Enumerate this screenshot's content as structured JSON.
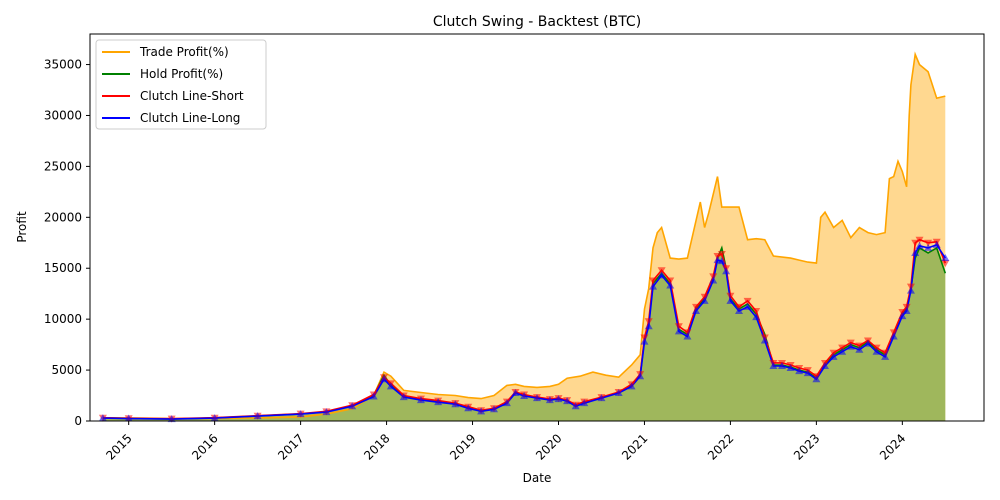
{
  "chart_data": {
    "type": "line",
    "title": "Clutch Swing - Backtest (BTC)",
    "xlabel": "Date",
    "ylabel": "Profit",
    "xlim": [
      2014.55,
      2024.95
    ],
    "ylim": [
      0,
      38000
    ],
    "x_ticks": [
      "2015",
      "2016",
      "2017",
      "2018",
      "2019",
      "2020",
      "2021",
      "2022",
      "2023",
      "2024"
    ],
    "y_ticks": [
      0,
      5000,
      10000,
      15000,
      20000,
      25000,
      30000,
      35000
    ],
    "legend_position": "top-left",
    "grid": false,
    "colors": {
      "trade": "#FFA500",
      "trade_fill": "#FFD68A",
      "hold": "#008000",
      "hold_fill": "#9AB55A",
      "short": "#FF0000",
      "long": "#0000FF"
    },
    "legend": [
      "Trade Profit(%)",
      "Hold Profit(%)",
      "Clutch Line-Short",
      "Clutch Line-Long"
    ],
    "series": [
      {
        "name": "Trade Profit(%)",
        "x": [
          2014.7,
          2015.0,
          2015.5,
          2016.0,
          2016.5,
          2017.0,
          2017.3,
          2017.6,
          2017.85,
          2017.97,
          2018.05,
          2018.2,
          2018.4,
          2018.6,
          2018.8,
          2018.95,
          2019.1,
          2019.25,
          2019.4,
          2019.5,
          2019.6,
          2019.75,
          2019.9,
          2020.0,
          2020.1,
          2020.25,
          2020.4,
          2020.55,
          2020.7,
          2020.85,
          2020.95,
          2021.0,
          2021.05,
          2021.1,
          2021.15,
          2021.2,
          2021.3,
          2021.4,
          2021.5,
          2021.65,
          2021.7,
          2021.75,
          2021.85,
          2021.9,
          2022.0,
          2022.1,
          2022.2,
          2022.3,
          2022.4,
          2022.5,
          2022.7,
          2022.8,
          2022.9,
          2023.0,
          2023.05,
          2023.1,
          2023.2,
          2023.3,
          2023.4,
          2023.5,
          2023.6,
          2023.7,
          2023.8,
          2023.85,
          2023.9,
          2023.95,
          2024.0,
          2024.05,
          2024.08,
          2024.1,
          2024.15,
          2024.2,
          2024.3,
          2024.4,
          2024.5
        ],
        "y": [
          300,
          300,
          250,
          250,
          300,
          400,
          700,
          1200,
          2500,
          4800,
          4400,
          3000,
          2800,
          2600,
          2500,
          2300,
          2200,
          2500,
          3500,
          3600,
          3400,
          3300,
          3400,
          3600,
          4200,
          4400,
          4800,
          4500,
          4300,
          5500,
          6500,
          11000,
          13000,
          17000,
          18500,
          19000,
          16000,
          15900,
          16000,
          21500,
          19000,
          20500,
          24000,
          21000,
          21000,
          21000,
          17800,
          17900,
          17800,
          16200,
          16000,
          15800,
          15600,
          15500,
          20000,
          20500,
          19000,
          19700,
          18000,
          19000,
          18500,
          18300,
          18500,
          23800,
          24000,
          25500,
          24500,
          23000,
          30000,
          33000,
          36000,
          35000,
          34300,
          31700,
          31900
        ]
      },
      {
        "name": "Hold Profit(%)",
        "x": [
          2014.7,
          2015.0,
          2015.5,
          2016.0,
          2016.5,
          2017.0,
          2017.3,
          2017.6,
          2017.85,
          2017.97,
          2018.05,
          2018.2,
          2018.4,
          2018.6,
          2018.8,
          2018.95,
          2019.1,
          2019.25,
          2019.4,
          2019.5,
          2019.6,
          2019.75,
          2019.9,
          2020.0,
          2020.1,
          2020.2,
          2020.3,
          2020.5,
          2020.7,
          2020.85,
          2020.95,
          2021.0,
          2021.05,
          2021.1,
          2021.2,
          2021.3,
          2021.4,
          2021.5,
          2021.6,
          2021.7,
          2021.8,
          2021.85,
          2021.9,
          2021.95,
          2022.0,
          2022.1,
          2022.2,
          2022.3,
          2022.4,
          2022.5,
          2022.6,
          2022.7,
          2022.8,
          2022.9,
          2023.0,
          2023.1,
          2023.2,
          2023.3,
          2023.4,
          2023.5,
          2023.6,
          2023.7,
          2023.8,
          2023.9,
          2024.0,
          2024.05,
          2024.1,
          2024.15,
          2024.2,
          2024.3,
          2024.4,
          2024.5
        ],
        "y": [
          300,
          250,
          200,
          300,
          500,
          700,
          900,
          1500,
          2500,
          4500,
          3500,
          2400,
          2100,
          1900,
          1700,
          1300,
          1000,
          1200,
          1800,
          2800,
          2500,
          2300,
          2100,
          2200,
          2000,
          1500,
          1800,
          2300,
          2800,
          3500,
          4500,
          8000,
          9500,
          13500,
          14500,
          13500,
          9000,
          8500,
          11000,
          12000,
          14000,
          16000,
          17000,
          15000,
          12000,
          11000,
          11500,
          10500,
          8500,
          5500,
          5500,
          5300,
          5000,
          4800,
          4200,
          5500,
          6500,
          7000,
          7500,
          7200,
          7800,
          7000,
          6500,
          8500,
          10500,
          11000,
          13000,
          16000,
          17000,
          16500,
          17000,
          14500
        ]
      },
      {
        "name": "Clutch Line-Short",
        "x": [
          2014.7,
          2015.0,
          2015.5,
          2016.0,
          2016.5,
          2017.0,
          2017.3,
          2017.6,
          2017.85,
          2017.97,
          2018.05,
          2018.2,
          2018.4,
          2018.6,
          2018.8,
          2018.95,
          2019.1,
          2019.25,
          2019.4,
          2019.5,
          2019.6,
          2019.75,
          2019.9,
          2020.0,
          2020.1,
          2020.2,
          2020.3,
          2020.5,
          2020.7,
          2020.85,
          2020.95,
          2021.0,
          2021.05,
          2021.1,
          2021.2,
          2021.3,
          2021.4,
          2021.5,
          2021.6,
          2021.7,
          2021.8,
          2021.85,
          2021.9,
          2021.95,
          2022.0,
          2022.1,
          2022.2,
          2022.3,
          2022.4,
          2022.5,
          2022.6,
          2022.7,
          2022.8,
          2022.9,
          2023.0,
          2023.1,
          2023.2,
          2023.3,
          2023.4,
          2023.5,
          2023.6,
          2023.7,
          2023.8,
          2023.9,
          2024.0,
          2024.05,
          2024.1,
          2024.15,
          2024.2,
          2024.3,
          2024.4,
          2024.5
        ],
        "y": [
          320,
          270,
          230,
          320,
          520,
          720,
          950,
          1550,
          2600,
          4300,
          3700,
          2500,
          2200,
          2000,
          1750,
          1400,
          1050,
          1250,
          1900,
          2850,
          2600,
          2350,
          2150,
          2250,
          2050,
          1600,
          1900,
          2350,
          2850,
          3600,
          4600,
          8200,
          9800,
          13800,
          14800,
          13800,
          9300,
          8700,
          11200,
          12200,
          14200,
          16200,
          16400,
          15000,
          12300,
          11200,
          11800,
          10800,
          8200,
          5700,
          5700,
          5500,
          5200,
          5000,
          4400,
          5700,
          6700,
          7200,
          7700,
          7400,
          7900,
          7200,
          6700,
          8700,
          10700,
          11200,
          13200,
          17500,
          17800,
          17500,
          17600,
          15500
        ]
      },
      {
        "name": "Clutch Line-Long",
        "x": [
          2014.7,
          2015.0,
          2015.5,
          2016.0,
          2016.5,
          2017.0,
          2017.3,
          2017.6,
          2017.85,
          2017.97,
          2018.05,
          2018.2,
          2018.4,
          2018.6,
          2018.8,
          2018.95,
          2019.1,
          2019.25,
          2019.4,
          2019.5,
          2019.6,
          2019.75,
          2019.9,
          2020.0,
          2020.1,
          2020.2,
          2020.3,
          2020.5,
          2020.7,
          2020.85,
          2020.95,
          2021.0,
          2021.05,
          2021.1,
          2021.2,
          2021.3,
          2021.4,
          2021.5,
          2021.6,
          2021.7,
          2021.8,
          2021.85,
          2021.9,
          2021.95,
          2022.0,
          2022.1,
          2022.2,
          2022.3,
          2022.4,
          2022.5,
          2022.6,
          2022.7,
          2022.8,
          2022.9,
          2023.0,
          2023.1,
          2023.2,
          2023.3,
          2023.4,
          2023.5,
          2023.6,
          2023.7,
          2023.8,
          2023.9,
          2024.0,
          2024.05,
          2024.1,
          2024.15,
          2024.2,
          2024.3,
          2024.4,
          2024.5
        ],
        "y": [
          280,
          240,
          190,
          280,
          480,
          680,
          870,
          1450,
          2400,
          4100,
          3400,
          2350,
          2050,
          1850,
          1650,
          1250,
          950,
          1150,
          1750,
          2750,
          2450,
          2250,
          2050,
          2150,
          1950,
          1450,
          1750,
          2250,
          2750,
          3400,
          4400,
          7800,
          9300,
          13200,
          14300,
          13300,
          8800,
          8300,
          10800,
          11800,
          13800,
          15800,
          15700,
          14700,
          11800,
          10800,
          11200,
          10200,
          7900,
          5400,
          5400,
          5200,
          4900,
          4700,
          4100,
          5400,
          6300,
          6800,
          7300,
          7000,
          7600,
          6800,
          6300,
          8300,
          10300,
          10800,
          12800,
          16500,
          17200,
          17000,
          17300,
          16000
        ]
      }
    ]
  }
}
